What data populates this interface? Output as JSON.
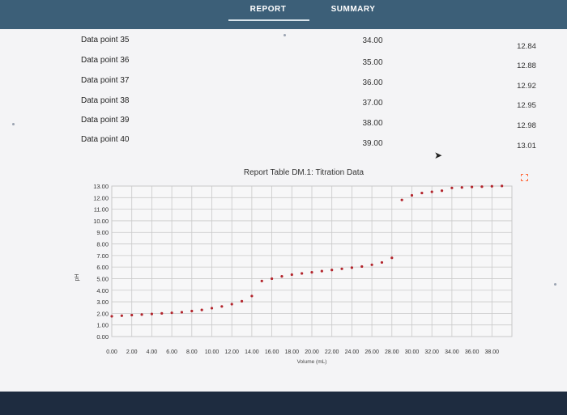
{
  "tabs": {
    "report": "REPORT",
    "summary": "SUMMARY"
  },
  "table_rows": [
    {
      "label": "Data point 35",
      "volume": "34.00",
      "ph": "12.84"
    },
    {
      "label": "Data point 36",
      "volume": "35.00",
      "ph": "12.88"
    },
    {
      "label": "Data point 37",
      "volume": "36.00",
      "ph": "12.92"
    },
    {
      "label": "Data point 38",
      "volume": "37.00",
      "ph": "12.95"
    },
    {
      "label": "Data point 39",
      "volume": "38.00",
      "ph": "12.98"
    },
    {
      "label": "Data point 40",
      "volume": "39.00",
      "ph": "13.01"
    }
  ],
  "colors": {
    "accent": "#3c5f78",
    "dot": "#b3262d",
    "grid": "#c9c9c9",
    "bottom_bar": "#1e2c40"
  },
  "icons": {
    "expand": "expand-icon",
    "cursor": "cursor-icon"
  },
  "chart_data": {
    "type": "scatter",
    "title": "Report Table DM.1: Titration Data",
    "xlabel": "Volume (mL)",
    "ylabel": "pH",
    "xlim": [
      0,
      40
    ],
    "ylim": [
      0,
      13
    ],
    "grid": true,
    "x_ticks": [
      "0.00",
      "2.00",
      "4.00",
      "6.00",
      "8.00",
      "10.00",
      "12.00",
      "14.00",
      "16.00",
      "18.00",
      "20.00",
      "22.00",
      "24.00",
      "26.00",
      "28.00",
      "30.00",
      "32.00",
      "34.00",
      "36.00",
      "38.00"
    ],
    "y_ticks": [
      "0.00",
      "1.00",
      "2.00",
      "3.00",
      "4.00",
      "5.00",
      "6.00",
      "7.00",
      "8.00",
      "9.00",
      "10.00",
      "11.00",
      "12.00",
      "13.00"
    ],
    "series": [
      {
        "x": [
          0,
          1,
          2,
          3,
          4,
          5,
          6,
          7,
          8,
          9,
          10,
          11,
          12,
          13,
          14,
          15,
          16,
          17,
          18,
          19,
          20,
          21,
          22,
          23,
          24,
          25,
          26,
          27,
          28,
          29,
          30,
          31,
          32,
          33,
          34,
          35,
          36,
          37,
          38,
          39
        ],
        "y": [
          1.75,
          1.8,
          1.85,
          1.9,
          1.95,
          2.0,
          2.05,
          2.1,
          2.2,
          2.3,
          2.45,
          2.6,
          2.8,
          3.05,
          3.5,
          4.8,
          5.0,
          5.2,
          5.35,
          5.45,
          5.55,
          5.65,
          5.75,
          5.85,
          5.95,
          6.05,
          6.2,
          6.4,
          6.8,
          11.8,
          12.2,
          12.4,
          12.5,
          12.6,
          12.84,
          12.88,
          12.92,
          12.95,
          12.98,
          13.01
        ]
      }
    ]
  }
}
